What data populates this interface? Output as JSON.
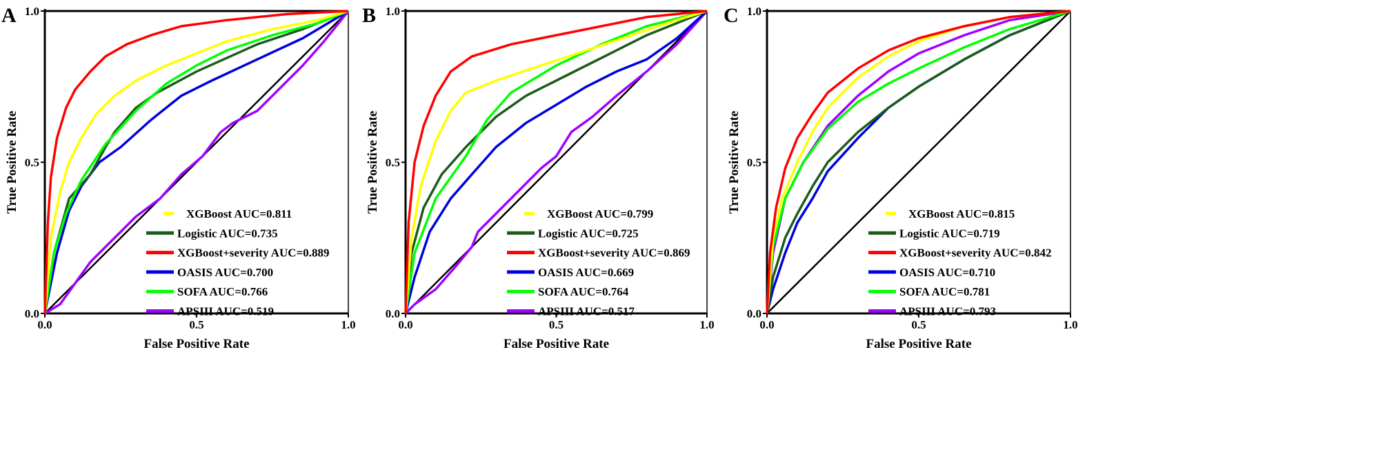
{
  "chart_data": [
    {
      "type": "line",
      "panel_label": "A",
      "xlabel": "False Positive Rate",
      "ylabel": "True Positive Rate",
      "xlim": [
        0,
        1
      ],
      "ylim": [
        0,
        1
      ],
      "xticks": [
        "0.0",
        "0.5",
        "1.0"
      ],
      "yticks": [
        "0.0",
        "0.5",
        "1.0"
      ],
      "legend_position": "bottom-right",
      "series": [
        {
          "name": "XGBoost AUC=0.811",
          "color": "#ffff00",
          "points": [
            [
              0,
              0
            ],
            [
              0.02,
              0.25
            ],
            [
              0.05,
              0.4
            ],
            [
              0.08,
              0.5
            ],
            [
              0.12,
              0.58
            ],
            [
              0.17,
              0.66
            ],
            [
              0.23,
              0.72
            ],
            [
              0.3,
              0.77
            ],
            [
              0.4,
              0.82
            ],
            [
              0.5,
              0.86
            ],
            [
              0.6,
              0.9
            ],
            [
              0.75,
              0.94
            ],
            [
              0.9,
              0.97
            ],
            [
              1,
              1
            ]
          ]
        },
        {
          "name": "Logistic AUC=0.735",
          "color": "#1a5c1a",
          "points": [
            [
              0,
              0
            ],
            [
              0.03,
              0.2
            ],
            [
              0.08,
              0.38
            ],
            [
              0.15,
              0.46
            ],
            [
              0.2,
              0.55
            ],
            [
              0.23,
              0.6
            ],
            [
              0.3,
              0.68
            ],
            [
              0.37,
              0.73
            ],
            [
              0.5,
              0.8
            ],
            [
              0.7,
              0.89
            ],
            [
              0.85,
              0.94
            ],
            [
              1,
              1
            ]
          ]
        },
        {
          "name": "XGBoost+severity AUC=0.889",
          "color": "#ff0000",
          "points": [
            [
              0,
              0
            ],
            [
              0.01,
              0.3
            ],
            [
              0.02,
              0.45
            ],
            [
              0.04,
              0.58
            ],
            [
              0.07,
              0.68
            ],
            [
              0.1,
              0.74
            ],
            [
              0.15,
              0.8
            ],
            [
              0.2,
              0.85
            ],
            [
              0.27,
              0.89
            ],
            [
              0.35,
              0.92
            ],
            [
              0.45,
              0.95
            ],
            [
              0.6,
              0.97
            ],
            [
              0.8,
              0.99
            ],
            [
              1,
              1
            ]
          ]
        },
        {
          "name": "OASIS AUC=0.700",
          "color": "#0000dd",
          "points": [
            [
              0,
              0
            ],
            [
              0.04,
              0.2
            ],
            [
              0.08,
              0.34
            ],
            [
              0.12,
              0.42
            ],
            [
              0.18,
              0.5
            ],
            [
              0.25,
              0.55
            ],
            [
              0.35,
              0.64
            ],
            [
              0.45,
              0.72
            ],
            [
              0.55,
              0.77
            ],
            [
              0.7,
              0.84
            ],
            [
              0.85,
              0.91
            ],
            [
              1,
              1
            ]
          ]
        },
        {
          "name": "SOFA AUC=0.766",
          "color": "#00ff00",
          "points": [
            [
              0,
              0
            ],
            [
              0.03,
              0.2
            ],
            [
              0.07,
              0.33
            ],
            [
              0.12,
              0.44
            ],
            [
              0.2,
              0.56
            ],
            [
              0.3,
              0.67
            ],
            [
              0.4,
              0.76
            ],
            [
              0.5,
              0.82
            ],
            [
              0.6,
              0.87
            ],
            [
              0.75,
              0.92
            ],
            [
              0.9,
              0.96
            ],
            [
              1,
              1
            ]
          ]
        },
        {
          "name": "APSIII AUC=0.519",
          "color": "#a000ff",
          "points": [
            [
              0,
              0
            ],
            [
              0.05,
              0.03
            ],
            [
              0.1,
              0.1
            ],
            [
              0.15,
              0.17
            ],
            [
              0.2,
              0.22
            ],
            [
              0.25,
              0.27
            ],
            [
              0.3,
              0.32
            ],
            [
              0.38,
              0.38
            ],
            [
              0.45,
              0.46
            ],
            [
              0.52,
              0.52
            ],
            [
              0.58,
              0.6
            ],
            [
              0.62,
              0.63
            ],
            [
              0.7,
              0.67
            ],
            [
              0.78,
              0.75
            ],
            [
              0.85,
              0.82
            ],
            [
              0.92,
              0.9
            ],
            [
              1,
              1
            ]
          ]
        }
      ]
    },
    {
      "type": "line",
      "panel_label": "B",
      "xlabel": "False Positive Rate",
      "ylabel": "True Positive Rate",
      "xlim": [
        0,
        1
      ],
      "ylim": [
        0,
        1
      ],
      "xticks": [
        "0.0",
        "0.5",
        "1.0"
      ],
      "yticks": [
        "0.0",
        "0.5",
        "1.0"
      ],
      "legend_position": "bottom-right",
      "series": [
        {
          "name": "XGBoost AUC=0.799",
          "color": "#ffff00",
          "points": [
            [
              0,
              0
            ],
            [
              0.02,
              0.25
            ],
            [
              0.05,
              0.42
            ],
            [
              0.1,
              0.57
            ],
            [
              0.15,
              0.67
            ],
            [
              0.2,
              0.73
            ],
            [
              0.3,
              0.77
            ],
            [
              0.45,
              0.82
            ],
            [
              0.6,
              0.87
            ],
            [
              0.75,
              0.92
            ],
            [
              0.9,
              0.97
            ],
            [
              1,
              1
            ]
          ]
        },
        {
          "name": "Logistic AUC=0.725",
          "color": "#1a5c1a",
          "points": [
            [
              0,
              0
            ],
            [
              0.02,
              0.2
            ],
            [
              0.06,
              0.35
            ],
            [
              0.12,
              0.46
            ],
            [
              0.2,
              0.55
            ],
            [
              0.3,
              0.65
            ],
            [
              0.4,
              0.72
            ],
            [
              0.5,
              0.77
            ],
            [
              0.6,
              0.82
            ],
            [
              0.7,
              0.87
            ],
            [
              0.8,
              0.92
            ],
            [
              0.9,
              0.96
            ],
            [
              1,
              1
            ]
          ]
        },
        {
          "name": "XGBoost+severity AUC=0.869",
          "color": "#ff0000",
          "points": [
            [
              0,
              0
            ],
            [
              0.01,
              0.3
            ],
            [
              0.03,
              0.5
            ],
            [
              0.06,
              0.62
            ],
            [
              0.1,
              0.72
            ],
            [
              0.15,
              0.8
            ],
            [
              0.22,
              0.85
            ],
            [
              0.35,
              0.89
            ],
            [
              0.5,
              0.92
            ],
            [
              0.65,
              0.95
            ],
            [
              0.8,
              0.98
            ],
            [
              1,
              1
            ]
          ]
        },
        {
          "name": "OASIS AUC=0.669",
          "color": "#0000dd",
          "points": [
            [
              0,
              0
            ],
            [
              0.03,
              0.12
            ],
            [
              0.08,
              0.27
            ],
            [
              0.15,
              0.38
            ],
            [
              0.22,
              0.46
            ],
            [
              0.3,
              0.55
            ],
            [
              0.4,
              0.63
            ],
            [
              0.5,
              0.69
            ],
            [
              0.6,
              0.75
            ],
            [
              0.7,
              0.8
            ],
            [
              0.8,
              0.84
            ],
            [
              0.9,
              0.91
            ],
            [
              1,
              1
            ]
          ]
        },
        {
          "name": "SOFA AUC=0.764",
          "color": "#00ff00",
          "points": [
            [
              0,
              0
            ],
            [
              0.03,
              0.2
            ],
            [
              0.1,
              0.38
            ],
            [
              0.2,
              0.52
            ],
            [
              0.27,
              0.64
            ],
            [
              0.35,
              0.73
            ],
            [
              0.5,
              0.82
            ],
            [
              0.65,
              0.89
            ],
            [
              0.8,
              0.95
            ],
            [
              1,
              1
            ]
          ]
        },
        {
          "name": "APSIII AUC=0.517",
          "color": "#a000ff",
          "points": [
            [
              0,
              0
            ],
            [
              0.03,
              0.03
            ],
            [
              0.1,
              0.08
            ],
            [
              0.17,
              0.16
            ],
            [
              0.22,
              0.22
            ],
            [
              0.24,
              0.27
            ],
            [
              0.3,
              0.33
            ],
            [
              0.37,
              0.4
            ],
            [
              0.45,
              0.48
            ],
            [
              0.5,
              0.52
            ],
            [
              0.55,
              0.6
            ],
            [
              0.62,
              0.65
            ],
            [
              0.7,
              0.72
            ],
            [
              0.8,
              0.8
            ],
            [
              0.9,
              0.89
            ],
            [
              1,
              1
            ]
          ]
        }
      ]
    },
    {
      "type": "line",
      "panel_label": "C",
      "xlabel": "False Positive Rate",
      "ylabel": "True Positive Rate",
      "xlim": [
        0,
        1
      ],
      "ylim": [
        0,
        1
      ],
      "xticks": [
        "0.0",
        "0.5",
        "1.0"
      ],
      "yticks": [
        "0.0",
        "0.5",
        "1.0"
      ],
      "legend_position": "bottom-right",
      "series": [
        {
          "name": "XGBoost AUC=0.815",
          "color": "#ffff00",
          "points": [
            [
              0,
              0
            ],
            [
              0.02,
              0.25
            ],
            [
              0.05,
              0.38
            ],
            [
              0.1,
              0.5
            ],
            [
              0.15,
              0.6
            ],
            [
              0.2,
              0.68
            ],
            [
              0.3,
              0.78
            ],
            [
              0.4,
              0.85
            ],
            [
              0.5,
              0.9
            ],
            [
              0.65,
              0.95
            ],
            [
              0.8,
              0.98
            ],
            [
              1,
              1
            ]
          ]
        },
        {
          "name": "Logistic AUC=0.719",
          "color": "#1a5c1a",
          "points": [
            [
              0,
              0
            ],
            [
              0.02,
              0.12
            ],
            [
              0.06,
              0.25
            ],
            [
              0.1,
              0.33
            ],
            [
              0.15,
              0.42
            ],
            [
              0.2,
              0.5
            ],
            [
              0.3,
              0.6
            ],
            [
              0.4,
              0.68
            ],
            [
              0.5,
              0.75
            ],
            [
              0.65,
              0.84
            ],
            [
              0.8,
              0.92
            ],
            [
              1,
              1
            ]
          ]
        },
        {
          "name": "XGBoost+severity AUC=0.842",
          "color": "#ff0000",
          "points": [
            [
              0,
              0
            ],
            [
              0.01,
              0.2
            ],
            [
              0.03,
              0.35
            ],
            [
              0.06,
              0.48
            ],
            [
              0.1,
              0.58
            ],
            [
              0.15,
              0.66
            ],
            [
              0.2,
              0.73
            ],
            [
              0.3,
              0.81
            ],
            [
              0.4,
              0.87
            ],
            [
              0.5,
              0.91
            ],
            [
              0.65,
              0.95
            ],
            [
              0.8,
              0.98
            ],
            [
              1,
              1
            ]
          ]
        },
        {
          "name": "OASIS AUC=0.710",
          "color": "#0000dd",
          "points": [
            [
              0,
              0
            ],
            [
              0.02,
              0.08
            ],
            [
              0.06,
              0.2
            ],
            [
              0.1,
              0.3
            ],
            [
              0.15,
              0.38
            ],
            [
              0.2,
              0.47
            ],
            [
              0.3,
              0.58
            ],
            [
              0.4,
              0.68
            ],
            [
              0.5,
              0.75
            ],
            [
              0.65,
              0.84
            ],
            [
              0.8,
              0.92
            ],
            [
              1,
              1
            ]
          ]
        },
        {
          "name": "SOFA AUC=0.781",
          "color": "#00ff00",
          "points": [
            [
              0,
              0
            ],
            [
              0.02,
              0.22
            ],
            [
              0.06,
              0.38
            ],
            [
              0.12,
              0.5
            ],
            [
              0.2,
              0.61
            ],
            [
              0.3,
              0.7
            ],
            [
              0.4,
              0.76
            ],
            [
              0.5,
              0.81
            ],
            [
              0.65,
              0.88
            ],
            [
              0.8,
              0.94
            ],
            [
              1,
              1
            ]
          ]
        },
        {
          "name": "APSIII AUC=0.793",
          "color": "#a000ff",
          "points": [
            [
              0,
              0
            ],
            [
              0.02,
              0.2
            ],
            [
              0.06,
              0.38
            ],
            [
              0.12,
              0.5
            ],
            [
              0.2,
              0.62
            ],
            [
              0.3,
              0.72
            ],
            [
              0.4,
              0.8
            ],
            [
              0.5,
              0.86
            ],
            [
              0.65,
              0.92
            ],
            [
              0.8,
              0.97
            ],
            [
              1,
              1
            ]
          ]
        }
      ]
    }
  ]
}
